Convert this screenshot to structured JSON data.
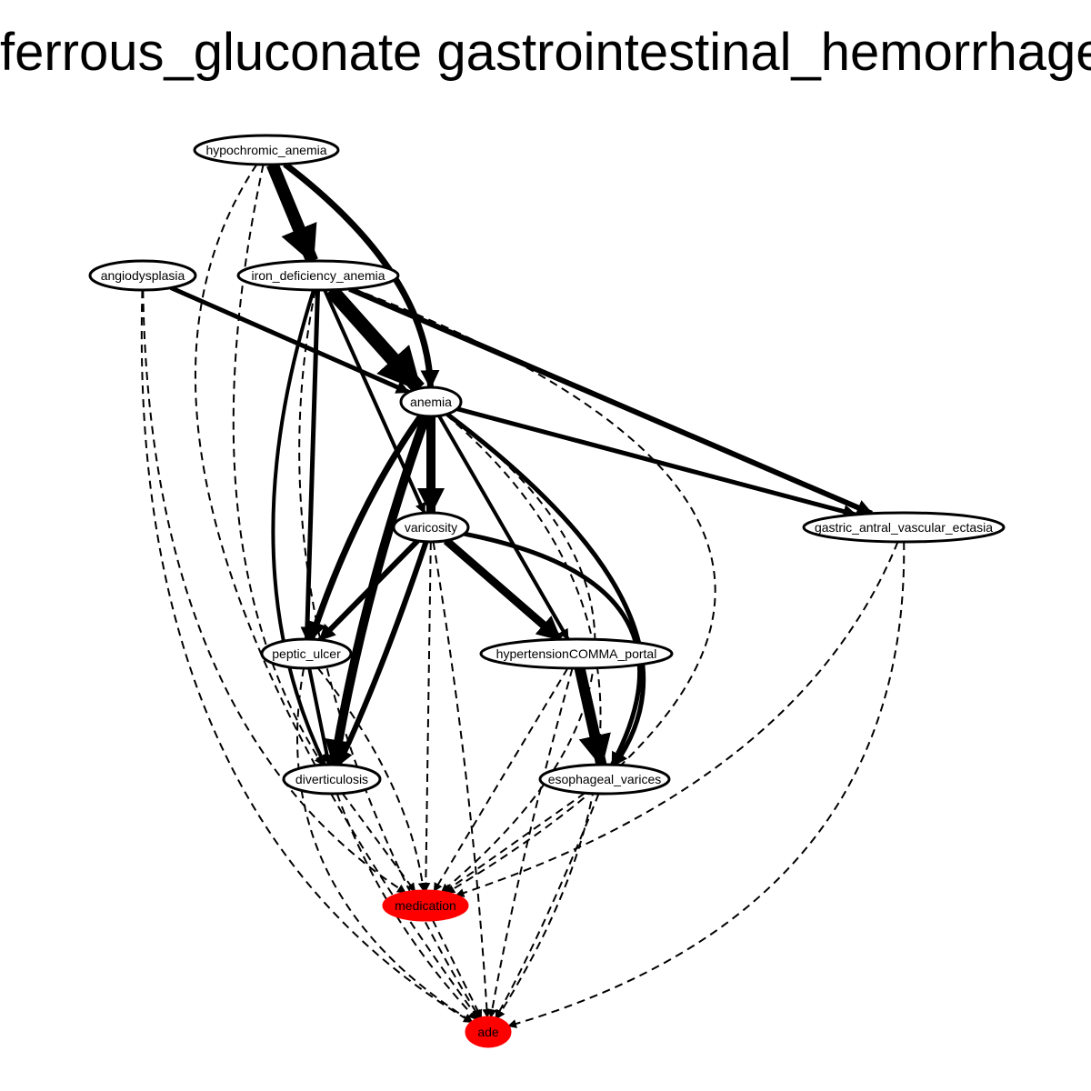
{
  "title": "ferrous_gluconate gastrointestinal_hemorrhage",
  "colors": {
    "highlight": "#ff0000",
    "edge": "#000000",
    "node_fill": "#ffffff"
  },
  "nodes": [
    {
      "id": "hypochromic_anemia",
      "label": "hypochromic_anemia",
      "highlight": false
    },
    {
      "id": "angiodysplasia",
      "label": "angiodysplasia",
      "highlight": false
    },
    {
      "id": "iron_deficiency_anemia",
      "label": "iron_deficiency_anemia",
      "highlight": false
    },
    {
      "id": "anemia",
      "label": "anemia",
      "highlight": false
    },
    {
      "id": "varicosity",
      "label": "varicosity",
      "highlight": false
    },
    {
      "id": "gastric_antral_vascular_ectasia",
      "label": "gastric_antral_vascular_ectasia",
      "highlight": false
    },
    {
      "id": "peptic_ulcer",
      "label": "peptic_ulcer",
      "highlight": false
    },
    {
      "id": "hypertensionCOMMA_portal",
      "label": "hypertensionCOMMA_portal",
      "highlight": false
    },
    {
      "id": "diverticulosis",
      "label": "diverticulosis",
      "highlight": false
    },
    {
      "id": "esophageal_varices",
      "label": "esophageal_varices",
      "highlight": false
    },
    {
      "id": "medication",
      "label": "medication",
      "highlight": true
    },
    {
      "id": "ade",
      "label": "ade",
      "highlight": true
    }
  ],
  "edges": [
    {
      "from": "hypochromic_anemia",
      "to": "iron_deficiency_anemia",
      "style": "solid",
      "weight": 14
    },
    {
      "from": "hypochromic_anemia",
      "to": "anemia",
      "style": "solid",
      "weight": 7
    },
    {
      "from": "hypochromic_anemia",
      "to": "diverticulosis",
      "style": "dashed",
      "weight": 2
    },
    {
      "from": "hypochromic_anemia",
      "to": "ade",
      "style": "dashed",
      "weight": 2
    },
    {
      "from": "angiodysplasia",
      "to": "anemia",
      "style": "solid",
      "weight": 5
    },
    {
      "from": "angiodysplasia",
      "to": "medication",
      "style": "dashed",
      "weight": 2
    },
    {
      "from": "angiodysplasia",
      "to": "ade",
      "style": "dashed",
      "weight": 2
    },
    {
      "from": "iron_deficiency_anemia",
      "to": "anemia",
      "style": "solid",
      "weight": 16
    },
    {
      "from": "iron_deficiency_anemia",
      "to": "varicosity",
      "style": "solid",
      "weight": 4
    },
    {
      "from": "iron_deficiency_anemia",
      "to": "peptic_ulcer",
      "style": "solid",
      "weight": 5
    },
    {
      "from": "iron_deficiency_anemia",
      "to": "diverticulosis",
      "style": "solid",
      "weight": 4
    },
    {
      "from": "iron_deficiency_anemia",
      "to": "gastric_antral_vascular_ectasia",
      "style": "solid",
      "weight": 6
    },
    {
      "from": "iron_deficiency_anemia",
      "to": "ade",
      "style": "dashed",
      "weight": 2
    },
    {
      "from": "iron_deficiency_anemia",
      "to": "medication",
      "style": "dashed",
      "weight": 2
    },
    {
      "from": "anemia",
      "to": "varicosity",
      "style": "solid",
      "weight": 10
    },
    {
      "from": "anemia",
      "to": "peptic_ulcer",
      "style": "solid",
      "weight": 7
    },
    {
      "from": "anemia",
      "to": "diverticulosis",
      "style": "solid",
      "weight": 10
    },
    {
      "from": "anemia",
      "to": "hypertensionCOMMA_portal",
      "style": "solid",
      "weight": 4
    },
    {
      "from": "anemia",
      "to": "esophageal_varices",
      "style": "solid",
      "weight": 5
    },
    {
      "from": "anemia",
      "to": "gastric_antral_vascular_ectasia",
      "style": "solid",
      "weight": 5
    },
    {
      "from": "anemia",
      "to": "medication",
      "style": "dashed",
      "weight": 2
    },
    {
      "from": "anemia",
      "to": "ade",
      "style": "dashed",
      "weight": 2
    },
    {
      "from": "varicosity",
      "to": "peptic_ulcer",
      "style": "solid",
      "weight": 6
    },
    {
      "from": "varicosity",
      "to": "diverticulosis",
      "style": "solid",
      "weight": 6
    },
    {
      "from": "varicosity",
      "to": "hypertensionCOMMA_portal",
      "style": "solid",
      "weight": 9
    },
    {
      "from": "varicosity",
      "to": "esophageal_varices",
      "style": "solid",
      "weight": 5
    },
    {
      "from": "varicosity",
      "to": "medication",
      "style": "dashed",
      "weight": 2
    },
    {
      "from": "varicosity",
      "to": "ade",
      "style": "dashed",
      "weight": 2
    },
    {
      "from": "gastric_antral_vascular_ectasia",
      "to": "medication",
      "style": "dashed",
      "weight": 2
    },
    {
      "from": "gastric_antral_vascular_ectasia",
      "to": "ade",
      "style": "dashed",
      "weight": 2
    },
    {
      "from": "peptic_ulcer",
      "to": "diverticulosis",
      "style": "solid",
      "weight": 4
    },
    {
      "from": "peptic_ulcer",
      "to": "medication",
      "style": "dashed",
      "weight": 2
    },
    {
      "from": "peptic_ulcer",
      "to": "ade",
      "style": "dashed",
      "weight": 2
    },
    {
      "from": "hypertensionCOMMA_portal",
      "to": "esophageal_varices",
      "style": "solid",
      "weight": 12
    },
    {
      "from": "hypertensionCOMMA_portal",
      "to": "medication",
      "style": "dashed",
      "weight": 2
    },
    {
      "from": "hypertensionCOMMA_portal",
      "to": "ade",
      "style": "dashed",
      "weight": 2
    },
    {
      "from": "diverticulosis",
      "to": "medication",
      "style": "dashed",
      "weight": 2
    },
    {
      "from": "diverticulosis",
      "to": "ade",
      "style": "dashed",
      "weight": 2
    },
    {
      "from": "esophageal_varices",
      "to": "medication",
      "style": "dashed",
      "weight": 2
    },
    {
      "from": "esophageal_varices",
      "to": "ade",
      "style": "dashed",
      "weight": 2
    },
    {
      "from": "medication",
      "to": "ade",
      "style": "dashed",
      "weight": 2
    }
  ]
}
